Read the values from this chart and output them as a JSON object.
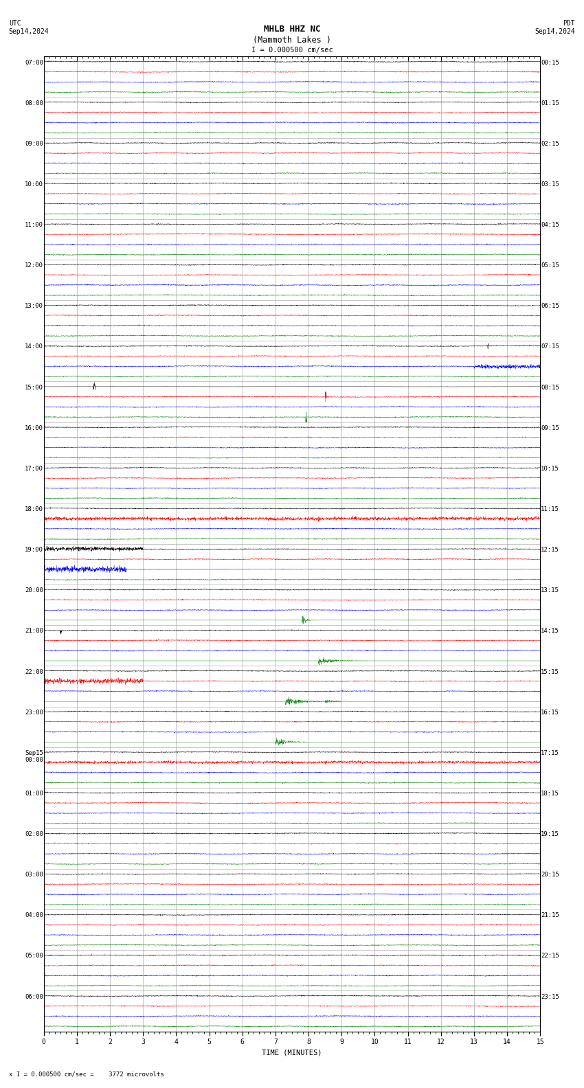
{
  "title_line1": "MHLB HHZ NC",
  "title_line2": "(Mammoth Lakes )",
  "scale_label": "I = 0.000500 cm/sec",
  "utc_label": "UTC",
  "utc_date": "Sep14,2024",
  "pdt_label": "PDT",
  "pdt_date": "Sep14,2024",
  "bottom_label": "x I = 0.000500 cm/sec =    3772 microvolts",
  "xlabel": "TIME (MINUTES)",
  "left_times": [
    "07:00",
    "08:00",
    "09:00",
    "10:00",
    "11:00",
    "12:00",
    "13:00",
    "14:00",
    "15:00",
    "16:00",
    "17:00",
    "18:00",
    "19:00",
    "20:00",
    "21:00",
    "22:00",
    "23:00",
    "Sep15\n00:00",
    "01:00",
    "02:00",
    "03:00",
    "04:00",
    "05:00",
    "06:00"
  ],
  "right_times": [
    "00:15",
    "01:15",
    "02:15",
    "03:15",
    "04:15",
    "05:15",
    "06:15",
    "07:15",
    "08:15",
    "09:15",
    "10:15",
    "11:15",
    "12:15",
    "13:15",
    "14:15",
    "15:15",
    "16:15",
    "17:15",
    "18:15",
    "19:15",
    "20:15",
    "21:15",
    "22:15",
    "23:15"
  ],
  "num_rows": 24,
  "minutes": 15,
  "colors": [
    "black",
    "red",
    "blue",
    "green"
  ],
  "bg_color": "white",
  "grid_color": "#999999",
  "title_fontsize": 9,
  "label_fontsize": 7.5,
  "tick_fontsize": 7
}
